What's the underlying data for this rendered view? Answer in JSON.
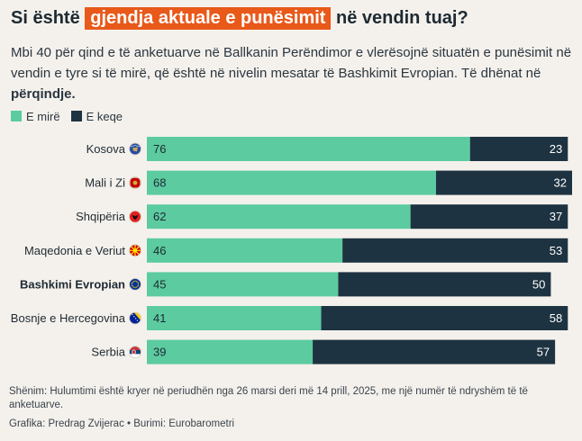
{
  "header": {
    "title_before": "Si është",
    "title_highlight": "gjendja aktuale e punësimit",
    "title_after": "në vendin tuaj?",
    "subtitle_main": "Mbi 40 për qind e të anketuarve në Ballkanin Perëndimor e vlerësojnë situatën e punësimit në vendin e tyre si të mirë, që është në nivelin mesatar të Bashkimit Evropian. Të dhënat në",
    "subtitle_bold": "përqindje."
  },
  "legend": {
    "good_label": "E mirë",
    "bad_label": "E keqe"
  },
  "colors": {
    "good": "#5ccba0",
    "bad": "#1e3341",
    "highlight": "#e8591a",
    "background": "#f4f1ec"
  },
  "chart_data": {
    "type": "bar",
    "orientation": "horizontal",
    "stacked": true,
    "title": "Si është gjendja aktuale e punësimit në vendin tuaj?",
    "unit": "%",
    "xlim": [
      0,
      100
    ],
    "categories": [
      "Kosova",
      "Mali i Zi",
      "Shqipëria",
      "Maqedonia e Veriut",
      "Bashkimi Evropian",
      "Bosnje e Hercegovina",
      "Serbia"
    ],
    "flag_icons": [
      "kosovo-flag-icon",
      "montenegro-flag-icon",
      "albania-flag-icon",
      "north-macedonia-flag-icon",
      "eu-flag-icon",
      "bosnia-flag-icon",
      "serbia-flag-icon"
    ],
    "highlighted_category": "Bashkimi Evropian",
    "series": [
      {
        "name": "E mirë",
        "values": [
          76,
          68,
          62,
          46,
          45,
          41,
          39
        ]
      },
      {
        "name": "E keqe",
        "values": [
          23,
          32,
          37,
          53,
          50,
          58,
          57
        ]
      }
    ]
  },
  "footer": {
    "note": "Shënim: Hulumtimi është kryer në periudhën nga 26 marsi deri më 14 prill, 2025, me një numër të ndryshëm të të anketuarve.",
    "credits": "Grafika: Predrag Zvijerac • Burimi: Eurobarometri"
  }
}
